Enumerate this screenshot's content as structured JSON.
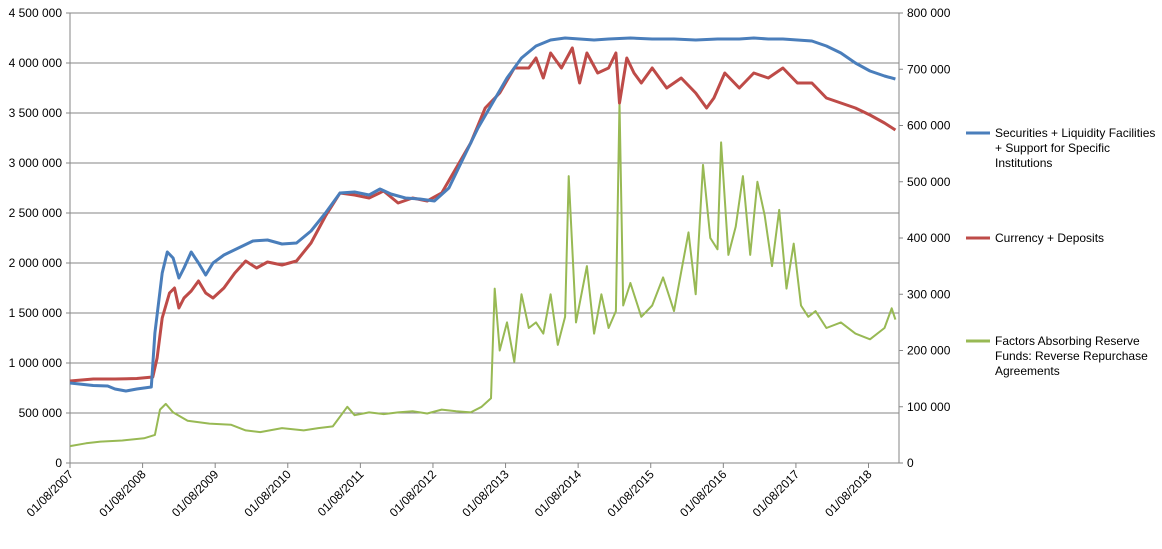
{
  "chart_data": {
    "type": "line",
    "title": "",
    "xlabel": "",
    "ylabel": "",
    "x_tick_labels": [
      "01/08/2007",
      "01/08/2008",
      "01/08/2009",
      "01/08/2010",
      "01/08/2011",
      "01/08/2012",
      "01/08/2013",
      "01/08/2014",
      "01/08/2015",
      "01/08/2016",
      "01/08/2017",
      "01/08/2018"
    ],
    "xlim": [
      2007.58,
      2019.0
    ],
    "ylim_left": [
      0,
      4500000
    ],
    "ylim_right": [
      0,
      800000
    ],
    "left_ticks": [
      "0",
      "500 000",
      "1 000 000",
      "1 500 000",
      "2 000 000",
      "2 500 000",
      "3 000 000",
      "3 500 000",
      "4 000 000",
      "4 500 000"
    ],
    "right_ticks": [
      "0",
      "100 000",
      "200 000",
      "300 000",
      "400 000",
      "500 000",
      "600 000",
      "700 000",
      "800 000"
    ],
    "grid": "horizontal",
    "legend_position": "right",
    "series": [
      {
        "name": "Securities + Liquidity Facilities + Support for Specific Institutions",
        "axis": "left",
        "color": "#4a7ebb",
        "points": [
          [
            2007.58,
            800000
          ],
          [
            2007.9,
            775000
          ],
          [
            2008.1,
            770000
          ],
          [
            2008.2,
            740000
          ],
          [
            2008.35,
            720000
          ],
          [
            2008.5,
            740000
          ],
          [
            2008.7,
            760000
          ],
          [
            2008.75,
            1300000
          ],
          [
            2008.85,
            1900000
          ],
          [
            2008.92,
            2110000
          ],
          [
            2009.0,
            2050000
          ],
          [
            2009.08,
            1850000
          ],
          [
            2009.15,
            1950000
          ],
          [
            2009.25,
            2110000
          ],
          [
            2009.35,
            2000000
          ],
          [
            2009.45,
            1880000
          ],
          [
            2009.55,
            2000000
          ],
          [
            2009.7,
            2080000
          ],
          [
            2009.9,
            2150000
          ],
          [
            2010.1,
            2220000
          ],
          [
            2010.3,
            2230000
          ],
          [
            2010.5,
            2190000
          ],
          [
            2010.7,
            2200000
          ],
          [
            2010.9,
            2320000
          ],
          [
            2011.1,
            2500000
          ],
          [
            2011.3,
            2700000
          ],
          [
            2011.5,
            2710000
          ],
          [
            2011.7,
            2680000
          ],
          [
            2011.85,
            2740000
          ],
          [
            2012.0,
            2690000
          ],
          [
            2012.2,
            2650000
          ],
          [
            2012.4,
            2640000
          ],
          [
            2012.6,
            2620000
          ],
          [
            2012.8,
            2750000
          ],
          [
            2013.0,
            3050000
          ],
          [
            2013.2,
            3350000
          ],
          [
            2013.4,
            3600000
          ],
          [
            2013.6,
            3850000
          ],
          [
            2013.8,
            4050000
          ],
          [
            2014.0,
            4170000
          ],
          [
            2014.2,
            4230000
          ],
          [
            2014.4,
            4250000
          ],
          [
            2014.6,
            4240000
          ],
          [
            2014.8,
            4230000
          ],
          [
            2015.0,
            4240000
          ],
          [
            2015.3,
            4250000
          ],
          [
            2015.6,
            4240000
          ],
          [
            2015.9,
            4240000
          ],
          [
            2016.2,
            4230000
          ],
          [
            2016.5,
            4240000
          ],
          [
            2016.8,
            4240000
          ],
          [
            2017.0,
            4250000
          ],
          [
            2017.2,
            4240000
          ],
          [
            2017.4,
            4240000
          ],
          [
            2017.6,
            4230000
          ],
          [
            2017.8,
            4220000
          ],
          [
            2018.0,
            4170000
          ],
          [
            2018.2,
            4100000
          ],
          [
            2018.4,
            4000000
          ],
          [
            2018.6,
            3920000
          ],
          [
            2018.8,
            3870000
          ],
          [
            2018.95,
            3840000
          ]
        ]
      },
      {
        "name": "Currency + Deposits",
        "axis": "left",
        "color": "#be4b48",
        "points": [
          [
            2007.58,
            820000
          ],
          [
            2007.9,
            840000
          ],
          [
            2008.2,
            840000
          ],
          [
            2008.5,
            845000
          ],
          [
            2008.72,
            860000
          ],
          [
            2008.78,
            1050000
          ],
          [
            2008.85,
            1450000
          ],
          [
            2008.95,
            1700000
          ],
          [
            2009.02,
            1750000
          ],
          [
            2009.08,
            1550000
          ],
          [
            2009.15,
            1650000
          ],
          [
            2009.25,
            1720000
          ],
          [
            2009.35,
            1820000
          ],
          [
            2009.45,
            1700000
          ],
          [
            2009.55,
            1650000
          ],
          [
            2009.7,
            1750000
          ],
          [
            2009.85,
            1900000
          ],
          [
            2010.0,
            2020000
          ],
          [
            2010.15,
            1950000
          ],
          [
            2010.3,
            2010000
          ],
          [
            2010.5,
            1980000
          ],
          [
            2010.7,
            2020000
          ],
          [
            2010.9,
            2200000
          ],
          [
            2011.1,
            2470000
          ],
          [
            2011.3,
            2700000
          ],
          [
            2011.5,
            2680000
          ],
          [
            2011.7,
            2650000
          ],
          [
            2011.9,
            2720000
          ],
          [
            2012.1,
            2600000
          ],
          [
            2012.3,
            2650000
          ],
          [
            2012.5,
            2620000
          ],
          [
            2012.7,
            2700000
          ],
          [
            2012.9,
            2950000
          ],
          [
            2013.1,
            3200000
          ],
          [
            2013.3,
            3550000
          ],
          [
            2013.5,
            3700000
          ],
          [
            2013.7,
            3950000
          ],
          [
            2013.9,
            3950000
          ],
          [
            2014.0,
            4050000
          ],
          [
            2014.1,
            3850000
          ],
          [
            2014.2,
            4100000
          ],
          [
            2014.35,
            3950000
          ],
          [
            2014.5,
            4150000
          ],
          [
            2014.6,
            3800000
          ],
          [
            2014.7,
            4100000
          ],
          [
            2014.85,
            3900000
          ],
          [
            2015.0,
            3950000
          ],
          [
            2015.1,
            4100000
          ],
          [
            2015.15,
            3600000
          ],
          [
            2015.25,
            4050000
          ],
          [
            2015.35,
            3900000
          ],
          [
            2015.45,
            3800000
          ],
          [
            2015.6,
            3950000
          ],
          [
            2015.8,
            3750000
          ],
          [
            2016.0,
            3850000
          ],
          [
            2016.2,
            3700000
          ],
          [
            2016.35,
            3550000
          ],
          [
            2016.45,
            3650000
          ],
          [
            2016.6,
            3900000
          ],
          [
            2016.8,
            3750000
          ],
          [
            2017.0,
            3900000
          ],
          [
            2017.2,
            3850000
          ],
          [
            2017.4,
            3950000
          ],
          [
            2017.6,
            3800000
          ],
          [
            2017.8,
            3800000
          ],
          [
            2018.0,
            3650000
          ],
          [
            2018.2,
            3600000
          ],
          [
            2018.4,
            3550000
          ],
          [
            2018.6,
            3480000
          ],
          [
            2018.8,
            3400000
          ],
          [
            2018.95,
            3330000
          ]
        ]
      },
      {
        "name": "Factors Absorbing Reserve Funds: Reverse Repurchase Agreements",
        "axis": "right",
        "color": "#98b954",
        "points": [
          [
            2007.58,
            30000
          ],
          [
            2007.8,
            35000
          ],
          [
            2008.0,
            38000
          ],
          [
            2008.3,
            40000
          ],
          [
            2008.6,
            44000
          ],
          [
            2008.75,
            50000
          ],
          [
            2008.82,
            95000
          ],
          [
            2008.9,
            105000
          ],
          [
            2009.0,
            90000
          ],
          [
            2009.2,
            75000
          ],
          [
            2009.5,
            70000
          ],
          [
            2009.8,
            68000
          ],
          [
            2010.0,
            58000
          ],
          [
            2010.2,
            55000
          ],
          [
            2010.5,
            62000
          ],
          [
            2010.8,
            58000
          ],
          [
            2011.0,
            62000
          ],
          [
            2011.2,
            65000
          ],
          [
            2011.4,
            100000
          ],
          [
            2011.5,
            85000
          ],
          [
            2011.7,
            90000
          ],
          [
            2011.9,
            87000
          ],
          [
            2012.1,
            90000
          ],
          [
            2012.3,
            92000
          ],
          [
            2012.5,
            88000
          ],
          [
            2012.7,
            95000
          ],
          [
            2012.9,
            92000
          ],
          [
            2013.1,
            90000
          ],
          [
            2013.25,
            100000
          ],
          [
            2013.38,
            115000
          ],
          [
            2013.43,
            310000
          ],
          [
            2013.5,
            200000
          ],
          [
            2013.6,
            250000
          ],
          [
            2013.7,
            180000
          ],
          [
            2013.8,
            300000
          ],
          [
            2013.9,
            240000
          ],
          [
            2014.0,
            250000
          ],
          [
            2014.1,
            230000
          ],
          [
            2014.2,
            300000
          ],
          [
            2014.3,
            210000
          ],
          [
            2014.4,
            260000
          ],
          [
            2014.45,
            510000
          ],
          [
            2014.55,
            250000
          ],
          [
            2014.7,
            350000
          ],
          [
            2014.8,
            230000
          ],
          [
            2014.9,
            300000
          ],
          [
            2015.0,
            240000
          ],
          [
            2015.1,
            270000
          ],
          [
            2015.15,
            640000
          ],
          [
            2015.2,
            280000
          ],
          [
            2015.3,
            320000
          ],
          [
            2015.45,
            260000
          ],
          [
            2015.6,
            280000
          ],
          [
            2015.75,
            330000
          ],
          [
            2015.9,
            270000
          ],
          [
            2016.0,
            340000
          ],
          [
            2016.1,
            410000
          ],
          [
            2016.2,
            300000
          ],
          [
            2016.3,
            530000
          ],
          [
            2016.4,
            400000
          ],
          [
            2016.5,
            380000
          ],
          [
            2016.55,
            570000
          ],
          [
            2016.65,
            370000
          ],
          [
            2016.75,
            420000
          ],
          [
            2016.85,
            510000
          ],
          [
            2016.95,
            370000
          ],
          [
            2017.05,
            500000
          ],
          [
            2017.15,
            440000
          ],
          [
            2017.25,
            350000
          ],
          [
            2017.35,
            450000
          ],
          [
            2017.45,
            310000
          ],
          [
            2017.55,
            390000
          ],
          [
            2017.65,
            280000
          ],
          [
            2017.75,
            260000
          ],
          [
            2017.85,
            270000
          ],
          [
            2018.0,
            240000
          ],
          [
            2018.2,
            250000
          ],
          [
            2018.4,
            230000
          ],
          [
            2018.6,
            220000
          ],
          [
            2018.8,
            240000
          ],
          [
            2018.9,
            275000
          ],
          [
            2018.95,
            255000
          ]
        ]
      }
    ]
  }
}
